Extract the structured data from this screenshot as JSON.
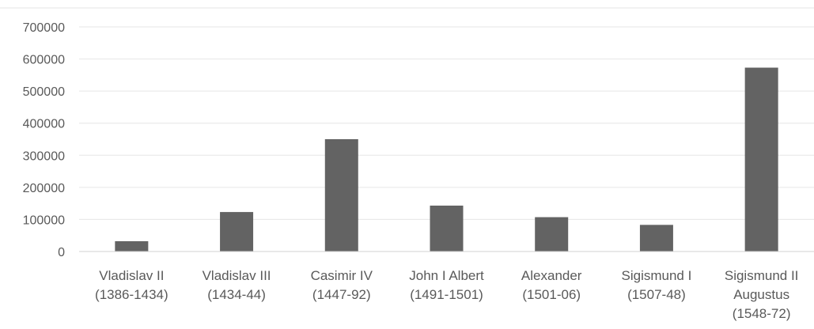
{
  "chart_data": {
    "type": "bar",
    "categories": [
      [
        "Vladislav II",
        "(1386-1434)"
      ],
      [
        "Vladislav III",
        "(1434-44)"
      ],
      [
        "Casimir IV",
        "(1447-92)"
      ],
      [
        "John I Albert",
        "(1491-1501)"
      ],
      [
        "Alexander",
        "(1501-06)"
      ],
      [
        "Sigismund I",
        "(1507-48)"
      ],
      [
        "Sigismund II",
        "Augustus",
        "(1548-72)"
      ]
    ],
    "values": [
      32000,
      123000,
      350000,
      143000,
      107000,
      83000,
      573000
    ],
    "yticks": [
      "0",
      "100000",
      "200000",
      "300000",
      "400000",
      "500000",
      "600000",
      "700000"
    ],
    "ylim": [
      0,
      700000
    ],
    "grid": true,
    "title": "",
    "xlabel": "",
    "ylabel": "",
    "colors": {
      "bar": "#636363",
      "grid": "#e6e6e6",
      "axis": "#d0d0d0",
      "text": "#595959"
    }
  }
}
